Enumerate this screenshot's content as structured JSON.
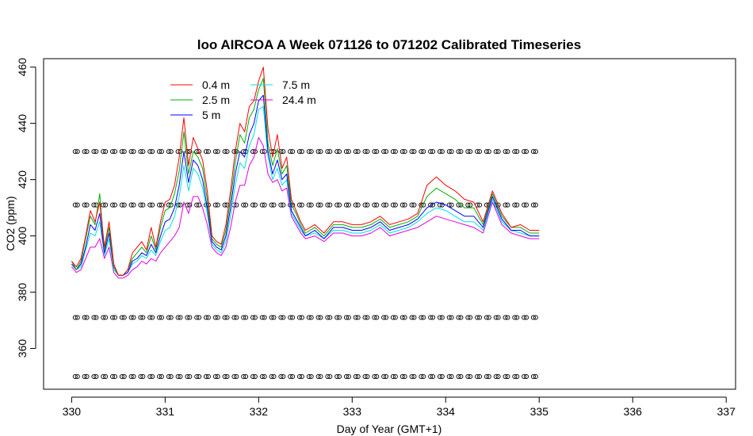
{
  "chart_data": {
    "type": "line",
    "title": "loo AIRCOA A  Week 071126 to 071202  Calibrated Timeseries",
    "xlabel": "Day of Year (GMT+1)",
    "ylabel": "CO2 (ppm)",
    "xlim": [
      329.7,
      337.1
    ],
    "ylim": [
      345.5,
      463
    ],
    "x_ticks": [
      330,
      331,
      332,
      333,
      334,
      335,
      336,
      337
    ],
    "y_ticks": [
      360,
      380,
      400,
      420,
      440,
      460
    ],
    "grid": false,
    "legend_position": "top-left",
    "series": [
      {
        "name": "0.4 m",
        "color": "#ff0000",
        "x": [
          330.0,
          330.05,
          330.1,
          330.15,
          330.2,
          330.25,
          330.3,
          330.35,
          330.4,
          330.45,
          330.5,
          330.55,
          330.6,
          330.65,
          330.7,
          330.75,
          330.8,
          330.85,
          330.9,
          330.95,
          331.0,
          331.05,
          331.1,
          331.15,
          331.2,
          331.25,
          331.3,
          331.35,
          331.4,
          331.45,
          331.5,
          331.55,
          331.6,
          331.65,
          331.7,
          331.75,
          331.8,
          331.85,
          331.9,
          331.95,
          332.0,
          332.05,
          332.1,
          332.15,
          332.2,
          332.25,
          332.3,
          332.35,
          332.4,
          332.45,
          332.5,
          332.6,
          332.7,
          332.8,
          332.9,
          333.0,
          333.1,
          333.2,
          333.3,
          333.4,
          333.5,
          333.6,
          333.7,
          333.8,
          333.9,
          334.0,
          334.1,
          334.2,
          334.3,
          334.4,
          334.5,
          334.6,
          334.7,
          334.8,
          334.9,
          335.0
        ],
        "values": [
          391,
          389,
          392,
          400,
          409,
          405,
          412,
          396,
          405,
          390,
          386,
          386,
          388,
          394,
          396,
          398,
          395,
          403,
          396,
          405,
          412,
          413,
          418,
          428,
          442,
          425,
          435,
          431,
          427,
          416,
          400,
          398,
          397,
          404,
          416,
          430,
          440,
          437,
          446,
          448,
          455,
          460,
          438,
          428,
          436,
          424,
          428,
          413,
          409,
          405,
          402,
          404,
          401,
          405,
          405,
          404,
          404,
          405,
          407,
          404,
          405,
          406,
          408,
          418,
          421,
          418,
          416,
          413,
          412,
          405,
          416,
          408,
          403,
          404,
          402,
          402
        ]
      },
      {
        "name": "2.5 m",
        "color": "#00b000",
        "x": [
          330.0,
          330.05,
          330.1,
          330.15,
          330.2,
          330.25,
          330.3,
          330.35,
          330.4,
          330.45,
          330.5,
          330.55,
          330.6,
          330.65,
          330.7,
          330.75,
          330.8,
          330.85,
          330.9,
          330.95,
          331.0,
          331.05,
          331.1,
          331.15,
          331.2,
          331.25,
          331.3,
          331.35,
          331.4,
          331.45,
          331.5,
          331.55,
          331.6,
          331.65,
          331.7,
          331.75,
          331.8,
          331.85,
          331.9,
          331.95,
          332.0,
          332.05,
          332.1,
          332.15,
          332.2,
          332.25,
          332.3,
          332.35,
          332.4,
          332.45,
          332.5,
          332.6,
          332.7,
          332.8,
          332.9,
          333.0,
          333.1,
          333.2,
          333.3,
          333.4,
          333.5,
          333.6,
          333.7,
          333.8,
          333.9,
          334.0,
          334.1,
          334.2,
          334.3,
          334.4,
          334.5,
          334.6,
          334.7,
          334.8,
          334.9,
          335.0
        ],
        "values": [
          391,
          388,
          391,
          399,
          407,
          404,
          415,
          395,
          403,
          389,
          386,
          386,
          388,
          392,
          394,
          396,
          394,
          400,
          395,
          403,
          409,
          410,
          415,
          423,
          437,
          422,
          430,
          428,
          424,
          413,
          399,
          397,
          396,
          402,
          413,
          426,
          436,
          433,
          442,
          445,
          452,
          456,
          433,
          425,
          431,
          422,
          425,
          411,
          408,
          404,
          401,
          403,
          400,
          404,
          404,
          403,
          403,
          404,
          406,
          403,
          404,
          405,
          407,
          414,
          417,
          415,
          413,
          410,
          410,
          404,
          415,
          407,
          403,
          403,
          401,
          401
        ]
      },
      {
        "name": "5 m",
        "color": "#0000ff",
        "x": [
          330.0,
          330.05,
          330.1,
          330.15,
          330.2,
          330.25,
          330.3,
          330.35,
          330.4,
          330.45,
          330.5,
          330.55,
          330.6,
          330.65,
          330.7,
          330.75,
          330.8,
          330.85,
          330.9,
          330.95,
          331.0,
          331.05,
          331.1,
          331.15,
          331.2,
          331.25,
          331.3,
          331.35,
          331.4,
          331.45,
          331.5,
          331.55,
          331.6,
          331.65,
          331.7,
          331.75,
          331.8,
          331.85,
          331.9,
          331.95,
          332.0,
          332.05,
          332.1,
          332.15,
          332.2,
          332.25,
          332.3,
          332.35,
          332.4,
          332.45,
          332.5,
          332.6,
          332.7,
          332.8,
          332.9,
          333.0,
          333.1,
          333.2,
          333.3,
          333.4,
          333.5,
          333.6,
          333.7,
          333.8,
          333.9,
          334.0,
          334.1,
          334.2,
          334.3,
          334.4,
          334.5,
          334.6,
          334.7,
          334.8,
          334.9,
          335.0
        ],
        "values": [
          390,
          388,
          390,
          396,
          404,
          402,
          408,
          394,
          401,
          389,
          386,
          386,
          387,
          391,
          392,
          394,
          393,
          397,
          394,
          400,
          405,
          406,
          410,
          418,
          430,
          419,
          427,
          425,
          420,
          410,
          398,
          396,
          395,
          400,
          410,
          422,
          430,
          428,
          436,
          440,
          448,
          450,
          430,
          422,
          427,
          420,
          422,
          409,
          406,
          403,
          400,
          402,
          399,
          403,
          403,
          402,
          402,
          403,
          405,
          402,
          403,
          404,
          406,
          410,
          412,
          411,
          409,
          407,
          407,
          403,
          414,
          406,
          402,
          402,
          400,
          400
        ]
      },
      {
        "name": "7.5 m",
        "color": "#00e0e0",
        "x": [
          330.0,
          330.05,
          330.1,
          330.15,
          330.2,
          330.25,
          330.3,
          330.35,
          330.4,
          330.45,
          330.5,
          330.55,
          330.6,
          330.65,
          330.7,
          330.75,
          330.8,
          330.85,
          330.9,
          330.95,
          331.0,
          331.05,
          331.1,
          331.15,
          331.2,
          331.25,
          331.3,
          331.35,
          331.4,
          331.45,
          331.5,
          331.55,
          331.6,
          331.65,
          331.7,
          331.75,
          331.8,
          331.85,
          331.9,
          331.95,
          332.0,
          332.05,
          332.1,
          332.15,
          332.2,
          332.25,
          332.3,
          332.35,
          332.4,
          332.45,
          332.5,
          332.6,
          332.7,
          332.8,
          332.9,
          333.0,
          333.1,
          333.2,
          333.3,
          333.4,
          333.5,
          333.6,
          333.7,
          333.8,
          333.9,
          334.0,
          334.1,
          334.2,
          334.3,
          334.4,
          334.5,
          334.6,
          334.7,
          334.8,
          334.9,
          335.0
        ],
        "values": [
          390,
          388,
          389,
          395,
          401,
          400,
          405,
          393,
          399,
          388,
          386,
          386,
          387,
          390,
          391,
          393,
          392,
          395,
          393,
          398,
          402,
          403,
          407,
          414,
          425,
          416,
          424,
          422,
          417,
          408,
          397,
          395,
          394,
          398,
          407,
          418,
          426,
          424,
          432,
          436,
          445,
          446,
          428,
          420,
          424,
          418,
          420,
          408,
          405,
          402,
          400,
          401,
          399,
          402,
          402,
          401,
          401,
          402,
          404,
          401,
          402,
          403,
          405,
          408,
          410,
          409,
          407,
          405,
          405,
          402,
          413,
          405,
          402,
          401,
          400,
          400
        ]
      },
      {
        "name": "24.4 m",
        "color": "#e000e0",
        "x": [
          330.0,
          330.05,
          330.1,
          330.15,
          330.2,
          330.25,
          330.3,
          330.35,
          330.4,
          330.45,
          330.5,
          330.55,
          330.6,
          330.65,
          330.7,
          330.75,
          330.8,
          330.85,
          330.9,
          330.95,
          331.0,
          331.05,
          331.1,
          331.15,
          331.2,
          331.25,
          331.3,
          331.35,
          331.4,
          331.45,
          331.5,
          331.55,
          331.6,
          331.65,
          331.7,
          331.75,
          331.8,
          331.85,
          331.9,
          331.95,
          332.0,
          332.05,
          332.1,
          332.15,
          332.2,
          332.25,
          332.3,
          332.35,
          332.4,
          332.45,
          332.5,
          332.6,
          332.7,
          332.8,
          332.9,
          333.0,
          333.1,
          333.2,
          333.3,
          333.4,
          333.5,
          333.6,
          333.7,
          333.8,
          333.9,
          334.0,
          334.1,
          334.2,
          334.3,
          334.4,
          334.5,
          334.6,
          334.7,
          334.8,
          334.9,
          335.0
        ],
        "values": [
          389,
          387,
          388,
          392,
          396,
          396,
          399,
          392,
          396,
          387,
          385,
          385,
          386,
          388,
          389,
          391,
          390,
          392,
          391,
          394,
          396,
          398,
          400,
          403,
          412,
          408,
          414,
          414,
          410,
          404,
          396,
          394,
          393,
          396,
          403,
          412,
          418,
          418,
          425,
          428,
          435,
          432,
          422,
          419,
          420,
          416,
          417,
          407,
          404,
          401,
          399,
          400,
          398,
          401,
          401,
          400,
          400,
          401,
          403,
          400,
          401,
          402,
          403,
          405,
          407,
          406,
          405,
          404,
          403,
          401,
          412,
          404,
          401,
          400,
          399,
          399
        ]
      }
    ],
    "marker_rows": {
      "symbol": "open-circle",
      "y_levels": [
        430,
        411,
        371,
        350
      ],
      "x_start": 330.05,
      "x_end": 335.0,
      "x_step": 0.1
    }
  }
}
